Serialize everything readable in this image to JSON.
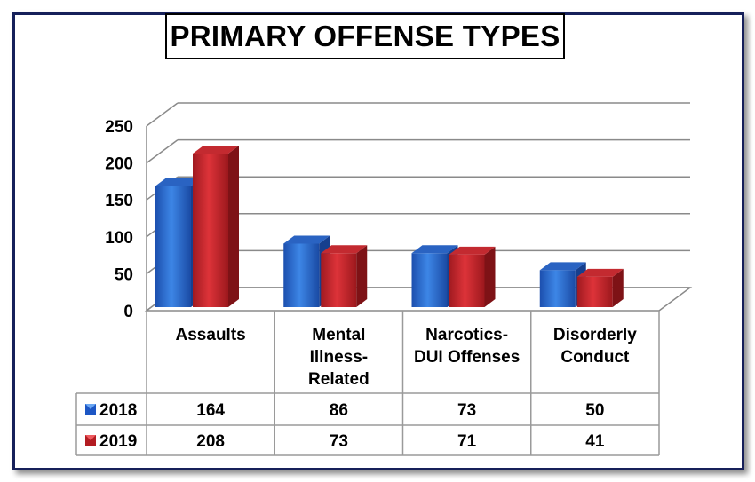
{
  "chart_data": {
    "type": "bar",
    "title": "PRIMARY OFFENSE TYPES",
    "categories": [
      [
        "Assaults"
      ],
      [
        "Mental",
        "Illness-",
        "Related"
      ],
      [
        "Narcotics-",
        "DUI Offenses"
      ],
      [
        "Disorderly",
        "Conduct"
      ]
    ],
    "ylim": [
      0,
      250
    ],
    "yticks": [
      "0",
      "50",
      "100",
      "150",
      "200",
      "250"
    ],
    "grid": true,
    "legend_placement": "data table",
    "series": [
      {
        "name": "2018",
        "values": [
          164,
          86,
          73,
          50
        ],
        "color": "#2e6fd0"
      },
      {
        "name": "2019",
        "values": [
          208,
          73,
          71,
          41
        ],
        "color": "#c8262c"
      }
    ]
  }
}
